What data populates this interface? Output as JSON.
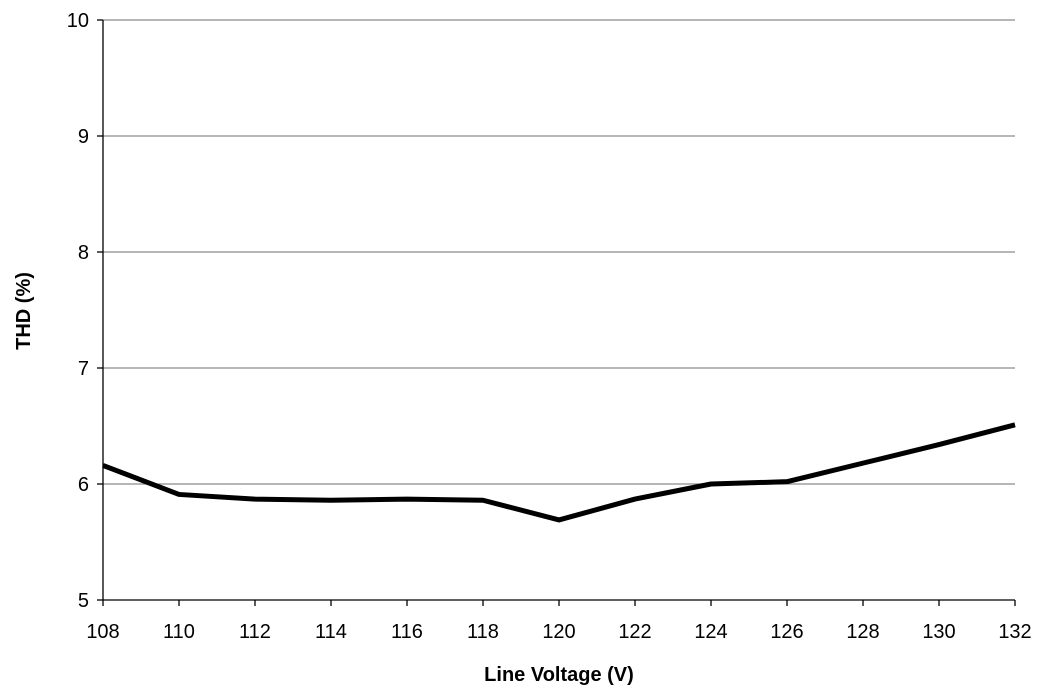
{
  "chart_data": {
    "type": "line",
    "title": "",
    "xlabel": "Line Voltage (V)",
    "ylabel": "THD (%)",
    "xlim": [
      108,
      132
    ],
    "ylim": [
      5,
      10
    ],
    "x_ticks": [
      108,
      110,
      112,
      114,
      116,
      118,
      120,
      122,
      124,
      126,
      128,
      130,
      132
    ],
    "y_ticks": [
      5,
      6,
      7,
      8,
      9,
      10
    ],
    "grid": "horizontal",
    "legend": "none",
    "series": [
      {
        "color": "#000000",
        "x": [
          108,
          110,
          112,
          114,
          116,
          118,
          120,
          122,
          124,
          126,
          128,
          130,
          132
        ],
        "y": [
          6.16,
          5.91,
          5.87,
          5.86,
          5.87,
          5.86,
          5.69,
          5.87,
          6.0,
          6.02,
          6.18,
          6.34,
          6.51
        ]
      }
    ]
  }
}
